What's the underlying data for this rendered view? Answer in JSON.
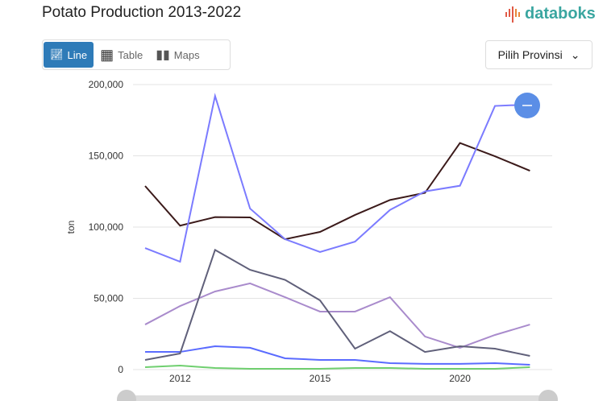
{
  "header": {
    "title": "Potato Production 2013-2022",
    "logo": "databoks"
  },
  "tabs": [
    {
      "label": "Line",
      "icon": "line-chart-icon",
      "active": true
    },
    {
      "label": "Table",
      "icon": "table-icon"
    },
    {
      "label": "Maps",
      "icon": "map-icon"
    }
  ],
  "province_select": {
    "label": "Pilih Provinsi"
  },
  "chart_data": {
    "type": "line",
    "title": "Potato Production 2013-2022",
    "ylabel": "ton",
    "ylim": [
      0,
      200000
    ],
    "yticks": [
      "0",
      "50,000",
      "100,000",
      "150,000",
      "200,000"
    ],
    "xticks": [
      "2012",
      "2015",
      "2020"
    ],
    "grid": true,
    "series": [
      {
        "color": "#7b7bff",
        "values": [
          85300,
          75700,
          192000,
          113000,
          91500,
          82500,
          89800,
          112000,
          125000,
          129000,
          185000,
          186000
        ]
      },
      {
        "color": "#3b1a1a",
        "values": [
          128800,
          101000,
          107000,
          106800,
          91500,
          96600,
          108500,
          119000,
          124000,
          159000,
          149700,
          139500
        ]
      },
      {
        "color": "#60607a",
        "values": [
          6800,
          11300,
          84000,
          70000,
          63000,
          48600,
          14700,
          27000,
          12400,
          16400,
          14700,
          9600
        ]
      },
      {
        "color": "#a98bcc",
        "values": [
          31600,
          44600,
          54800,
          60500,
          50800,
          40700,
          40700,
          50800,
          23200,
          15300,
          24300,
          31600
        ]
      },
      {
        "color": "#5a6bff",
        "values": [
          12400,
          12400,
          16400,
          15300,
          7900,
          6800,
          6800,
          4500,
          4000,
          4000,
          4500,
          3400
        ]
      },
      {
        "color": "#6fcf6f",
        "values": [
          1700,
          2800,
          1100,
          600,
          600,
          600,
          1100,
          1100,
          600,
          600,
          600,
          1700
        ]
      }
    ]
  }
}
